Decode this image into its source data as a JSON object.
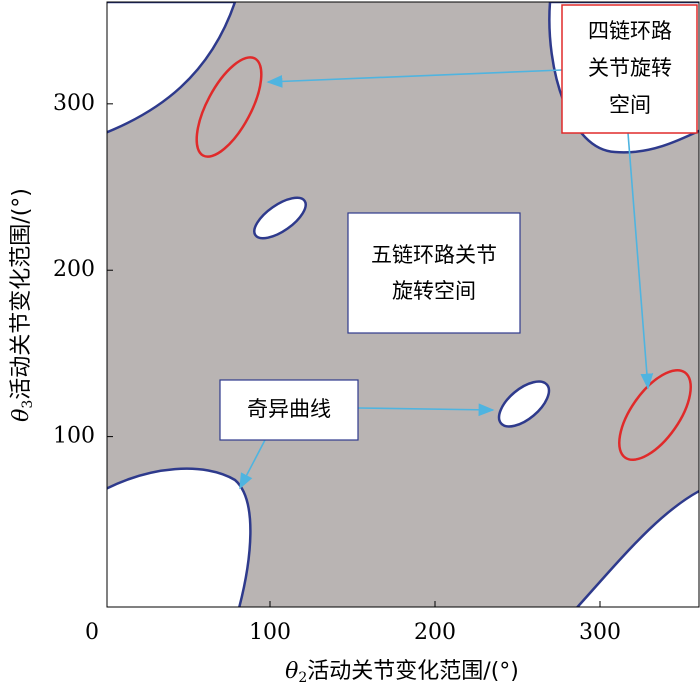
{
  "chart_data": {
    "type": "region",
    "xlabel": {
      "symbol": "θ",
      "sub": "2",
      "text": "活动关节变化范围/(°)"
    },
    "ylabel": {
      "symbol": "θ",
      "sub": "3",
      "text": "活动关节变化范围/(°)"
    },
    "xlim": [
      0,
      360
    ],
    "ylim": [
      0,
      360
    ],
    "xticks": [
      0,
      100,
      200,
      300
    ],
    "yticks": [
      100,
      200,
      300
    ],
    "annotations": {
      "four_loop": [
        "四链环路",
        "关节旋转",
        "空间"
      ],
      "five_loop": [
        "五链环路关节",
        "旋转空间"
      ],
      "singular": [
        "奇异曲线"
      ]
    }
  }
}
